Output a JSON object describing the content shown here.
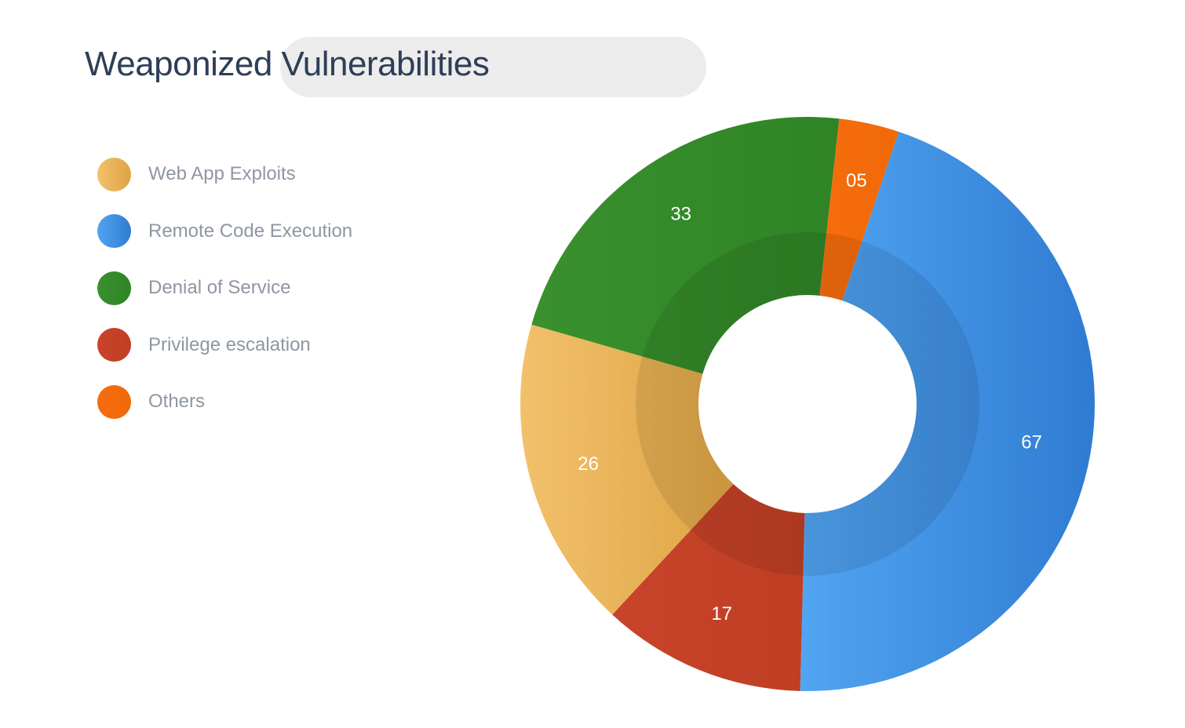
{
  "chart_data": {
    "type": "pie",
    "variant": "donut",
    "title": "Weaponized Vulnerabilities",
    "categories": [
      "Web App Exploits",
      "Remote Code Execution",
      "Denial of Service",
      "Privilege escalation",
      "Others"
    ],
    "series": [
      {
        "values": [
          26,
          67,
          33,
          17,
          5
        ],
        "labels": [
          "26",
          "67",
          "33",
          "17",
          "05"
        ]
      }
    ],
    "colors": {
      "Web App Exploits": [
        "#f2c16c",
        "#dea444"
      ],
      "Remote Code Execution": [
        "#52a5f2",
        "#2f7bd2"
      ],
      "Denial of Service": [
        "#3a902e",
        "#2f8425"
      ],
      "Privilege escalation": [
        "#c8442a",
        "#bf3e24"
      ],
      "Others": [
        "#f66c0e",
        "#f06a08"
      ]
    },
    "legend_position": "left",
    "inner_band": true
  }
}
